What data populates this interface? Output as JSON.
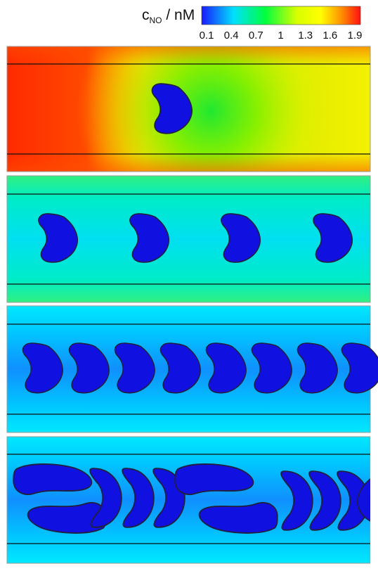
{
  "colorbar": {
    "quantity": "c",
    "subscript": "NO",
    "unit": "/ nM",
    "ticks": [
      "0.1",
      "0.4",
      "0.7",
      "1",
      "1.3",
      "1.6",
      "1.9"
    ],
    "colors": [
      "#1a1aff",
      "#00dfff",
      "#00ff40",
      "#d8ff00",
      "#ffff00",
      "#ff9000",
      "#ff1010"
    ]
  },
  "panels": [
    {
      "id": "panel-1",
      "background": "gradient-high",
      "cells": 1
    },
    {
      "id": "panel-2",
      "background": "#22ee9a",
      "cells": 4
    },
    {
      "id": "panel-3",
      "background": "#00dfff",
      "cells": 8
    },
    {
      "id": "panel-4",
      "background": "#00dfff",
      "cells": 11
    }
  ],
  "colors": {
    "cell_fill": "#1010e0",
    "cell_stroke": "#202040",
    "wall_line": "#111111"
  }
}
